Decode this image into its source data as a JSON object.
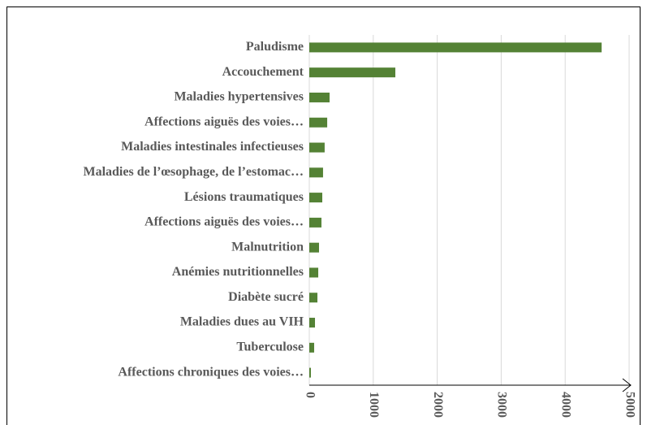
{
  "chart_data": {
    "type": "bar",
    "orientation": "horizontal",
    "categories": [
      "Paludisme",
      "Accouchement",
      "Maladies hypertensives",
      "Affections aiguës des voies…",
      "Maladies intestinales infectieuses",
      "Maladies de l’œsophage, de l’estomac…",
      "Lésions traumatiques",
      "Affections aiguës des voies…",
      "Malnutrition",
      "Anémies nutritionnelles",
      "Diabète sucré",
      "Maladies dues au VIH",
      "Tuberculose",
      "Affections chroniques des voies…"
    ],
    "values": [
      4570,
      1345,
      317,
      280,
      240,
      215,
      203,
      190,
      152,
      140,
      127,
      89,
      76,
      25
    ],
    "color": "#548235",
    "xlim": [
      0,
      5000
    ],
    "xticks": [
      0,
      1000,
      2000,
      3000,
      4000,
      5000
    ],
    "grid": true
  }
}
